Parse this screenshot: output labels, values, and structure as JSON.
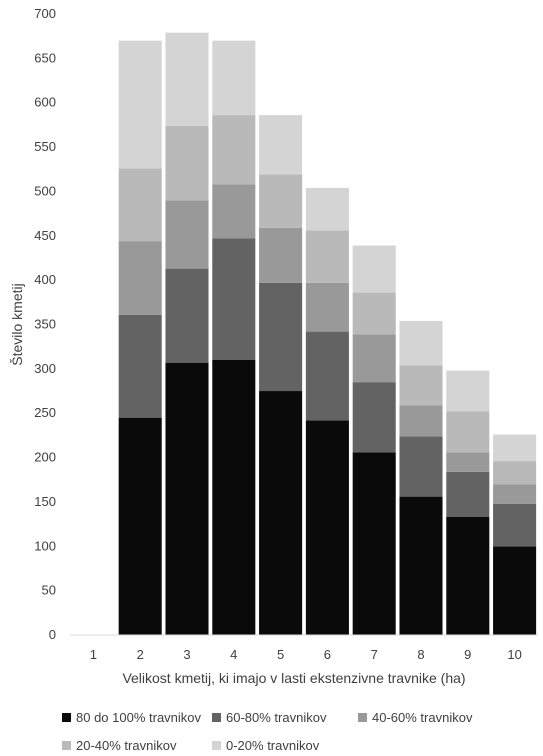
{
  "chart_data": {
    "type": "bar",
    "stacked": true,
    "categories": [
      "1",
      "2",
      "3",
      "4",
      "5",
      "6",
      "7",
      "8",
      "9",
      "10"
    ],
    "xlabel": "Velikost kmetij, ki imajo v lasti ekstenzivne travnike (ha)",
    "ylabel": "Število kmetij",
    "ylim": [
      0,
      700
    ],
    "yticks": [
      0,
      50,
      100,
      150,
      200,
      250,
      300,
      350,
      400,
      450,
      500,
      550,
      600,
      650,
      700
    ],
    "grid": false,
    "legend_position": "bottom",
    "series": [
      {
        "name": "80 do 100% travnikov",
        "color": "#0a0a0a",
        "values": [
          0,
          245,
          307,
          310,
          275,
          242,
          206,
          156,
          133,
          100
        ]
      },
      {
        "name": "60-80% travnikov",
        "color": "#636363",
        "values": [
          0,
          116,
          106,
          137,
          122,
          100,
          79,
          68,
          51,
          48
        ]
      },
      {
        "name": "40-60% travnikov",
        "color": "#999999",
        "values": [
          0,
          83,
          77,
          61,
          62,
          55,
          54,
          35,
          22,
          22
        ]
      },
      {
        "name": "20-40% travnikov",
        "color": "#b9b9b9",
        "values": [
          0,
          82,
          84,
          78,
          60,
          59,
          47,
          45,
          46,
          26
        ]
      },
      {
        "name": "0-20% travnikov",
        "color": "#d4d4d4",
        "values": [
          0,
          144,
          105,
          84,
          67,
          48,
          53,
          50,
          46,
          30
        ]
      }
    ]
  }
}
